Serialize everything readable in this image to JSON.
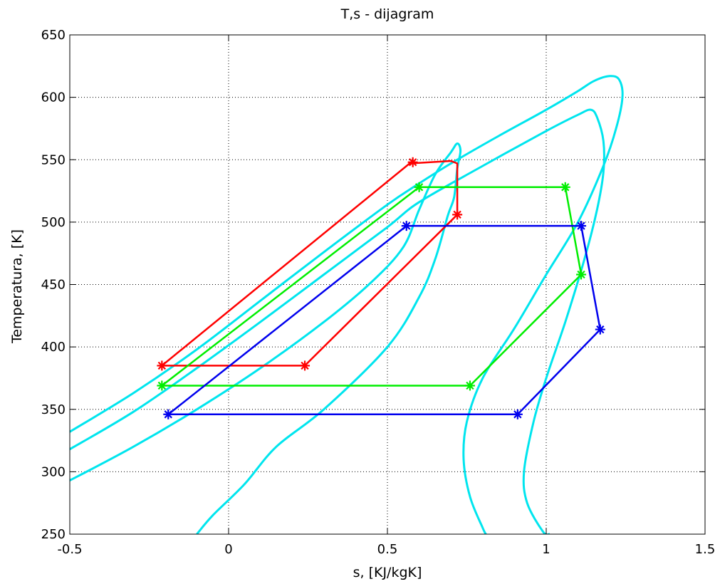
{
  "chart_data": {
    "type": "line",
    "title": "T,s - dijagram",
    "xlabel": "s, [KJ/kgK]",
    "ylabel": "Temperatura, [K]",
    "xlim": [
      -0.5,
      1.5
    ],
    "ylim": [
      250,
      650
    ],
    "xticks": [
      -0.5,
      0,
      0.5,
      1,
      1.5
    ],
    "yticks": [
      250,
      300,
      350,
      400,
      450,
      500,
      550,
      600,
      650
    ],
    "xtick_labels": [
      "-0.5",
      "0",
      "0.5",
      "1",
      "1.5"
    ],
    "ytick_labels": [
      "250",
      "300",
      "350",
      "400",
      "450",
      "500",
      "550",
      "600",
      "650"
    ],
    "grid": true,
    "grid_style": "dotted",
    "curve_color": "#00e5ee",
    "saturation_curves": [
      {
        "points": [
          [
            -0.5,
            293
          ],
          [
            -0.3,
            320
          ],
          [
            -0.1,
            350
          ],
          [
            0.1,
            383
          ],
          [
            0.3,
            420
          ],
          [
            0.45,
            452
          ],
          [
            0.55,
            480
          ],
          [
            0.6,
            510
          ],
          [
            0.65,
            538
          ],
          [
            0.7,
            556
          ],
          [
            0.72,
            563
          ],
          [
            0.73,
            557
          ],
          [
            0.72,
            543
          ],
          [
            0.71,
            520
          ],
          [
            0.69,
            505
          ],
          [
            0.65,
            470
          ],
          [
            0.6,
            440
          ],
          [
            0.5,
            400
          ],
          [
            0.3,
            350
          ],
          [
            0.15,
            320
          ],
          [
            0.05,
            290
          ],
          [
            -0.05,
            265
          ],
          [
            -0.1,
            250
          ]
        ]
      },
      {
        "points": [
          [
            -0.5,
            318
          ],
          [
            -0.3,
            348
          ],
          [
            -0.1,
            383
          ],
          [
            0.1,
            420
          ],
          [
            0.3,
            458
          ],
          [
            0.5,
            496
          ],
          [
            0.6,
            516
          ],
          [
            0.8,
            545
          ],
          [
            1.0,
            573
          ],
          [
            1.1,
            586
          ],
          [
            1.14,
            590
          ],
          [
            1.16,
            584
          ],
          [
            1.18,
            565
          ],
          [
            1.18,
            540
          ],
          [
            1.16,
            510
          ],
          [
            1.12,
            470
          ],
          [
            1.06,
            420
          ],
          [
            1.0,
            375
          ],
          [
            0.96,
            340
          ],
          [
            0.93,
            300
          ],
          [
            0.94,
            275
          ],
          [
            0.99,
            252
          ],
          [
            1.01,
            250
          ]
        ]
      },
      {
        "points": [
          [
            -0.5,
            332
          ],
          [
            -0.3,
            363
          ],
          [
            -0.1,
            398
          ],
          [
            0.1,
            437
          ],
          [
            0.3,
            476
          ],
          [
            0.5,
            514
          ],
          [
            0.6,
            531
          ],
          [
            0.7,
            547
          ],
          [
            0.85,
            569
          ],
          [
            1.0,
            590
          ],
          [
            1.1,
            605
          ],
          [
            1.15,
            613
          ],
          [
            1.2,
            617
          ],
          [
            1.23,
            614
          ],
          [
            1.24,
            600
          ],
          [
            1.22,
            575
          ],
          [
            1.18,
            545
          ],
          [
            1.1,
            500
          ],
          [
            1.0,
            458
          ],
          [
            0.9,
            415
          ],
          [
            0.8,
            375
          ],
          [
            0.75,
            340
          ],
          [
            0.74,
            310
          ],
          [
            0.76,
            280
          ],
          [
            0.8,
            255
          ],
          [
            0.81,
            250
          ]
        ]
      }
    ],
    "series": [
      {
        "color": "#ff0000",
        "line_points": [
          [
            -0.21,
            385
          ],
          [
            0.57,
            547
          ],
          [
            0.7,
            549
          ],
          [
            0.72,
            547
          ],
          [
            0.72,
            506
          ],
          [
            0.24,
            385
          ],
          [
            -0.21,
            385
          ]
        ],
        "markers": [
          [
            -0.21,
            385
          ],
          [
            0.58,
            548
          ],
          [
            0.72,
            506
          ],
          [
            0.24,
            385
          ]
        ]
      },
      {
        "color": "#00ee00",
        "line_points": [
          [
            -0.21,
            369
          ],
          [
            0.6,
            528
          ],
          [
            1.06,
            528
          ],
          [
            1.11,
            458
          ],
          [
            0.76,
            369
          ],
          [
            -0.21,
            369
          ]
        ],
        "markers": [
          [
            -0.21,
            369
          ],
          [
            0.6,
            528
          ],
          [
            1.06,
            528
          ],
          [
            1.11,
            458
          ],
          [
            0.76,
            369
          ]
        ]
      },
      {
        "color": "#0000ee",
        "line_points": [
          [
            -0.19,
            346
          ],
          [
            0.56,
            497
          ],
          [
            1.11,
            497
          ],
          [
            1.17,
            414
          ],
          [
            0.91,
            346
          ],
          [
            -0.19,
            346
          ]
        ],
        "markers": [
          [
            -0.19,
            346
          ],
          [
            0.56,
            497
          ],
          [
            1.11,
            497
          ],
          [
            1.17,
            414
          ],
          [
            0.91,
            346
          ]
        ]
      }
    ]
  }
}
